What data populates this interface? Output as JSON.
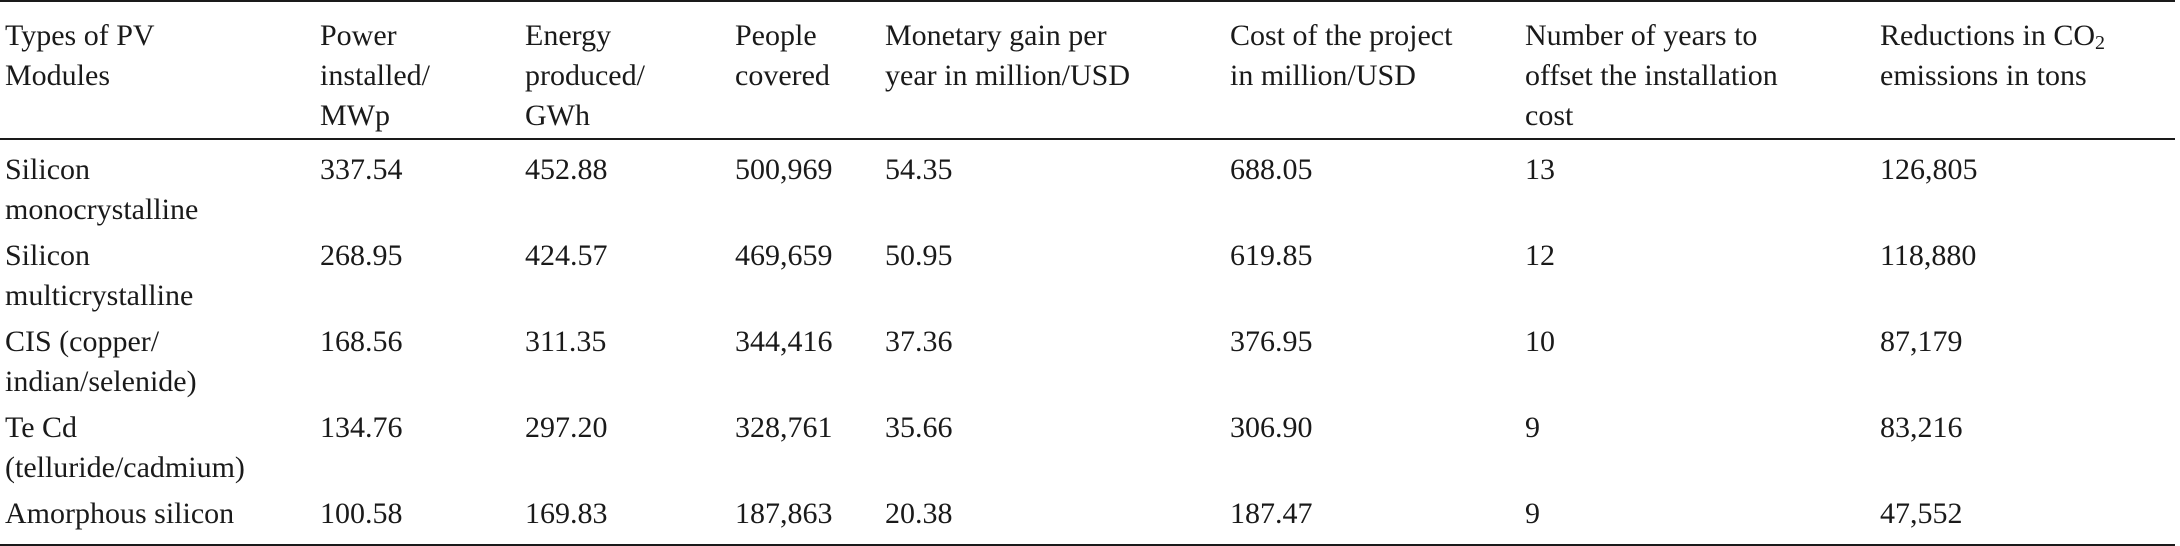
{
  "table": {
    "headers": [
      [
        "Types of PV",
        "Modules"
      ],
      [
        "Power",
        "installed/",
        "MWp"
      ],
      [
        "Energy",
        "produced/",
        "GWh"
      ],
      [
        "People",
        "covered"
      ],
      [
        "Monetary gain per",
        "year in million/USD"
      ],
      [
        "Cost of the project",
        "in million/USD"
      ],
      [
        "Number of years to",
        "offset the installation",
        "cost"
      ],
      [
        "Reductions in CO",
        "emissions in tons"
      ]
    ],
    "co2_subscript": "2",
    "rows": [
      {
        "type": [
          "Silicon",
          "monocrystalline"
        ],
        "power": "337.54",
        "energy": "452.88",
        "people": "500,969",
        "gain": "54.35",
        "cost": "688.05",
        "years": "13",
        "co2": "126,805"
      },
      {
        "type": [
          "Silicon",
          "multicrystalline"
        ],
        "power": "268.95",
        "energy": "424.57",
        "people": "469,659",
        "gain": "50.95",
        "cost": "619.85",
        "years": "12",
        "co2": "118,880"
      },
      {
        "type": [
          "CIS (copper/",
          "indian/selenide)"
        ],
        "power": "168.56",
        "energy": "311.35",
        "people": "344,416",
        "gain": "37.36",
        "cost": "376.95",
        "years": "10",
        "co2": "87,179"
      },
      {
        "type": [
          "Te Cd",
          "(telluride/cadmium)"
        ],
        "power": "134.76",
        "energy": "297.20",
        "people": "328,761",
        "gain": "35.66",
        "cost": "306.90",
        "years": "9",
        "co2": "83,216"
      },
      {
        "type": [
          "Amorphous silicon"
        ],
        "power": "100.58",
        "energy": "169.83",
        "people": "187,863",
        "gain": "20.38",
        "cost": "187.47",
        "years": "9",
        "co2": "47,552"
      }
    ]
  }
}
